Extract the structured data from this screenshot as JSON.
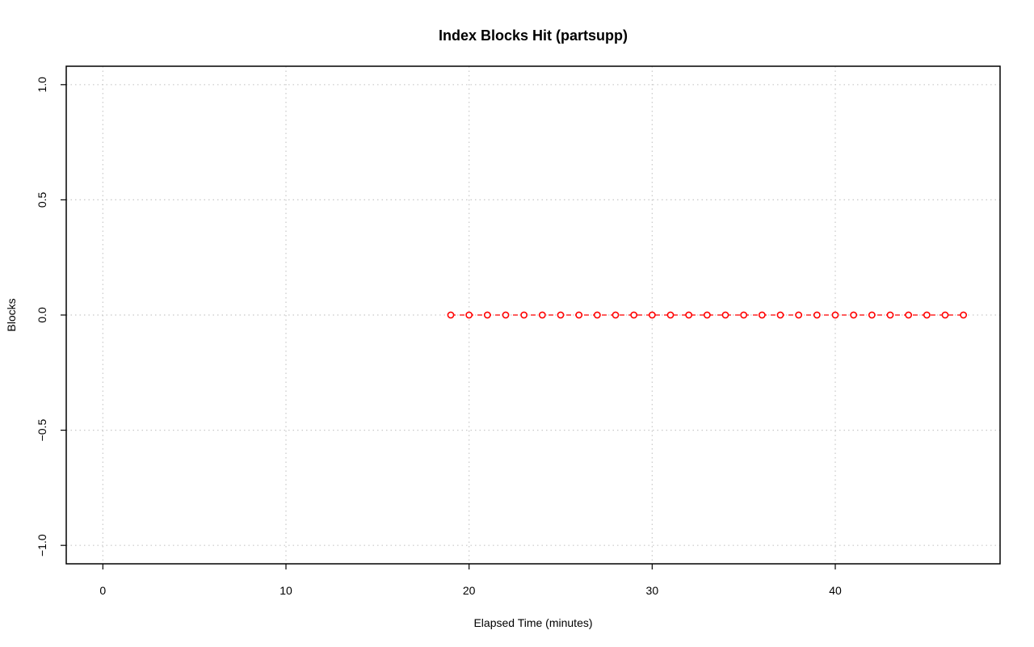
{
  "chart_data": {
    "type": "line",
    "title": "Index Blocks Hit (partsupp)",
    "xlabel": "Elapsed Time (minutes)",
    "ylabel": "Blocks",
    "xlim": [
      -2,
      49
    ],
    "ylim": [
      -1.08,
      1.08
    ],
    "x_ticks": [
      0,
      10,
      20,
      30,
      40
    ],
    "x_tick_labels": [
      "0",
      "10",
      "20",
      "30",
      "40"
    ],
    "y_ticks": [
      -1.0,
      -0.5,
      0.0,
      0.5,
      1.0
    ],
    "y_tick_labels": [
      "−1.0",
      "−0.5",
      "0.0",
      "0.5",
      "1.0"
    ],
    "grid": true,
    "series": [
      {
        "color": "#ff0000",
        "line_style": "dashed",
        "marker": "open-circle",
        "x": [
          19,
          20,
          21,
          22,
          23,
          24,
          25,
          26,
          27,
          28,
          29,
          30,
          31,
          32,
          33,
          34,
          35,
          36,
          37,
          38,
          39,
          40,
          41,
          42,
          43,
          44,
          45,
          46,
          47
        ],
        "values": [
          0,
          0,
          0,
          0,
          0,
          0,
          0,
          0,
          0,
          0,
          0,
          0,
          0,
          0,
          0,
          0,
          0,
          0,
          0,
          0,
          0,
          0,
          0,
          0,
          0,
          0,
          0,
          0,
          0
        ]
      }
    ]
  }
}
